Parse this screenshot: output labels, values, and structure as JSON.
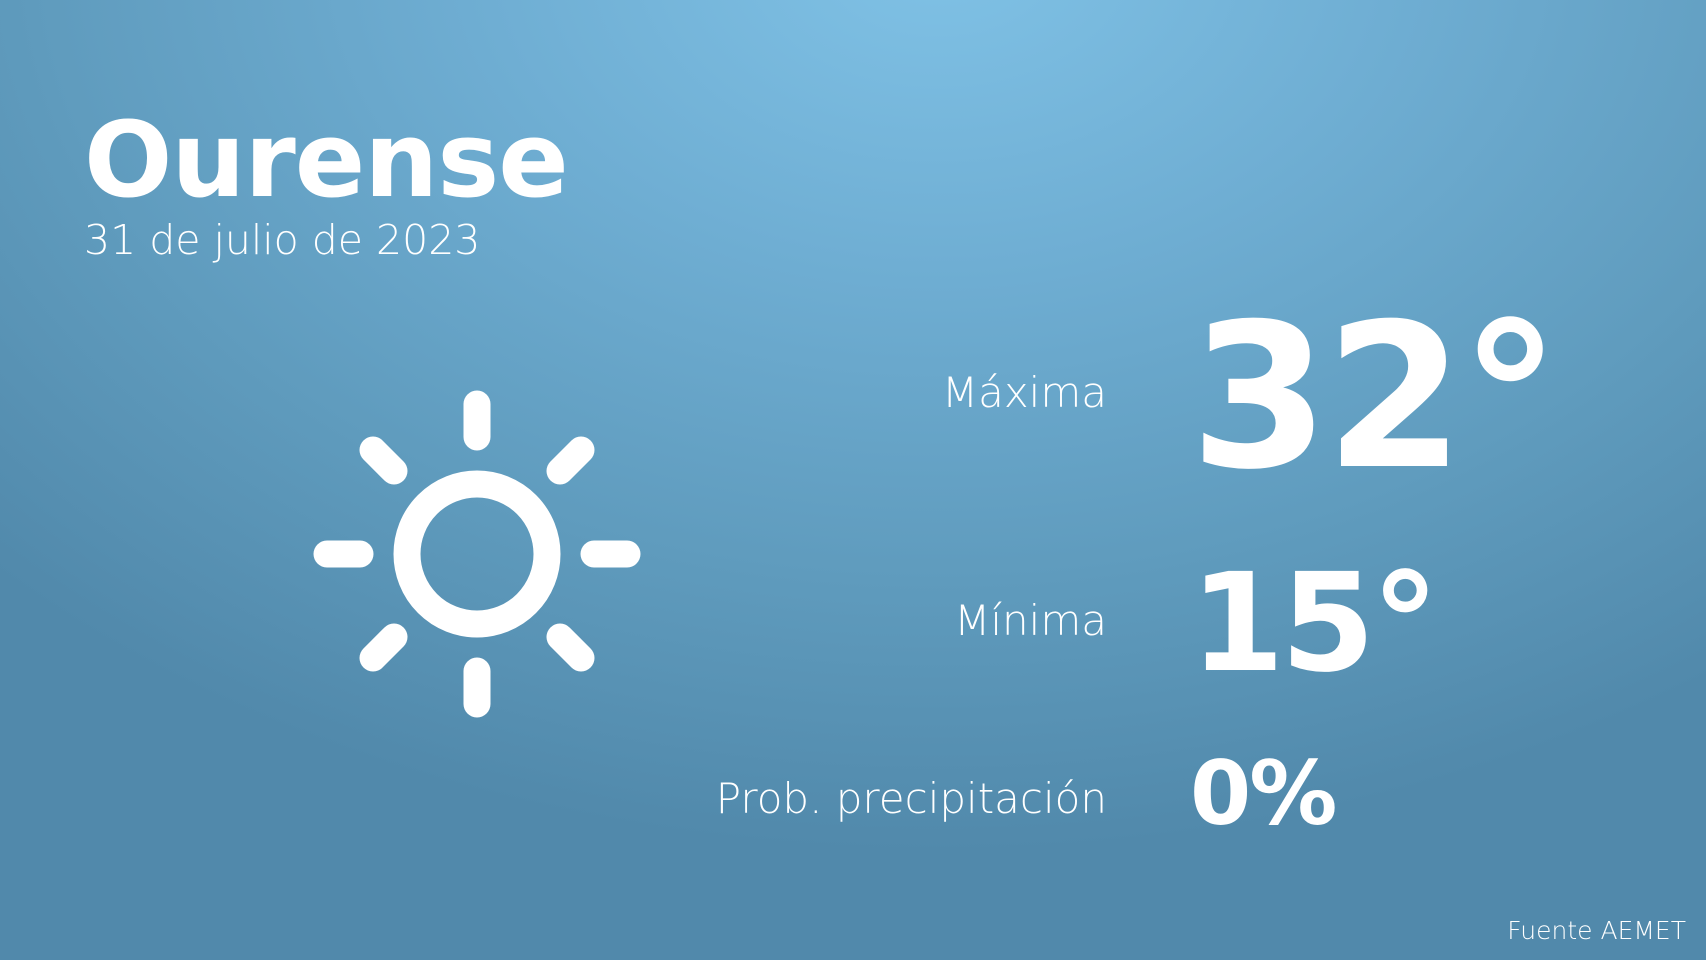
{
  "header": {
    "city": "Ourense",
    "date": "31 de julio de 2023"
  },
  "weather": {
    "icon": "sun-icon",
    "max_label": "Máxima",
    "max_value": "32°",
    "min_label": "Mínima",
    "min_value": "15°",
    "precip_label": "Prob. precipitación",
    "precip_value": "0%"
  },
  "footer": {
    "source": "Fuente AEMET"
  },
  "colors": {
    "background_top": "#80c2e6",
    "background_bottom": "#5189ab",
    "text": "#ffffff"
  }
}
